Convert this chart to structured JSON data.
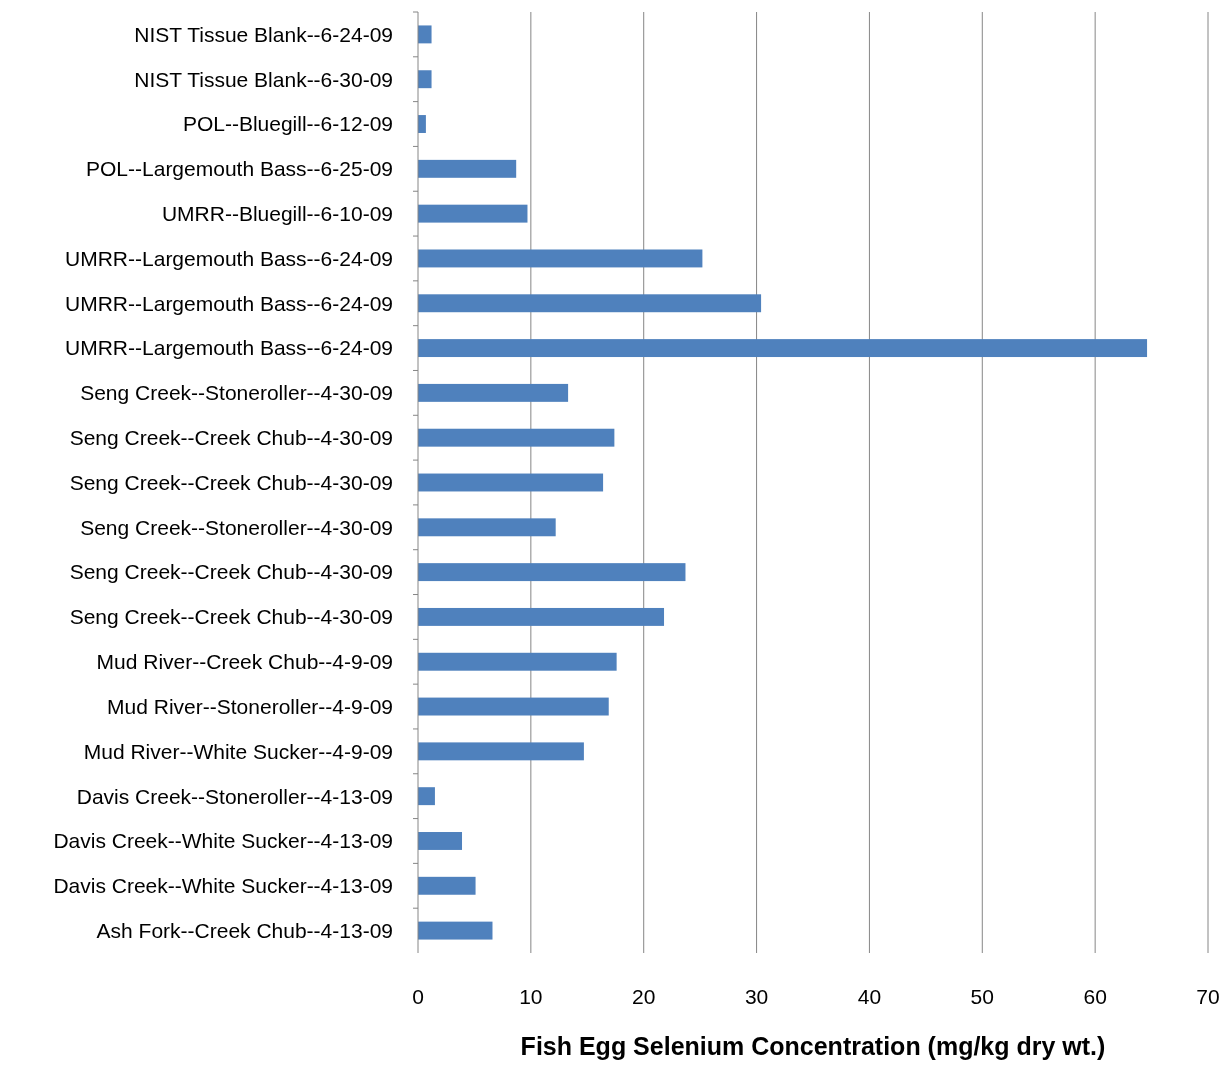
{
  "chart_data": {
    "type": "bar",
    "orientation": "horizontal",
    "xlabel": "Fish Egg Selenium Concentration (mg/kg dry wt.)",
    "categories": [
      "NIST Tissue Blank--6-24-09",
      "NIST Tissue Blank--6-30-09",
      "POL--Bluegill--6-12-09",
      "POL--Largemouth Bass--6-25-09",
      "UMRR--Bluegill--6-10-09",
      "UMRR--Largemouth Bass--6-24-09",
      "UMRR--Largemouth Bass--6-24-09",
      "UMRR--Largemouth Bass--6-24-09",
      "Seng Creek--Stoneroller--4-30-09",
      "Seng Creek--Creek Chub--4-30-09",
      "Seng Creek--Creek Chub--4-30-09",
      "Seng Creek--Stoneroller--4-30-09",
      "Seng Creek--Creek Chub--4-30-09",
      "Seng Creek--Creek Chub--4-30-09",
      "Mud River--Creek Chub--4-9-09",
      "Mud River--Stoneroller--4-9-09",
      "Mud River--White Sucker--4-9-09",
      "Davis Creek--Stoneroller--4-13-09",
      "Davis Creek--White Sucker--4-13-09",
      "Davis Creek--White Sucker--4-13-09",
      "Ash Fork--Creek Chub--4-13-09"
    ],
    "values": [
      1.2,
      1.2,
      0.7,
      8.7,
      9.7,
      25.2,
      30.4,
      64.6,
      13.3,
      17.4,
      16.4,
      12.2,
      23.7,
      21.8,
      17.6,
      16.9,
      14.7,
      1.5,
      3.9,
      5.1,
      6.6
    ],
    "color": "#4f81bd",
    "xlim": [
      0,
      70
    ],
    "xticks": [
      0,
      10,
      20,
      30,
      40,
      50,
      60,
      70
    ],
    "grid": "x"
  }
}
